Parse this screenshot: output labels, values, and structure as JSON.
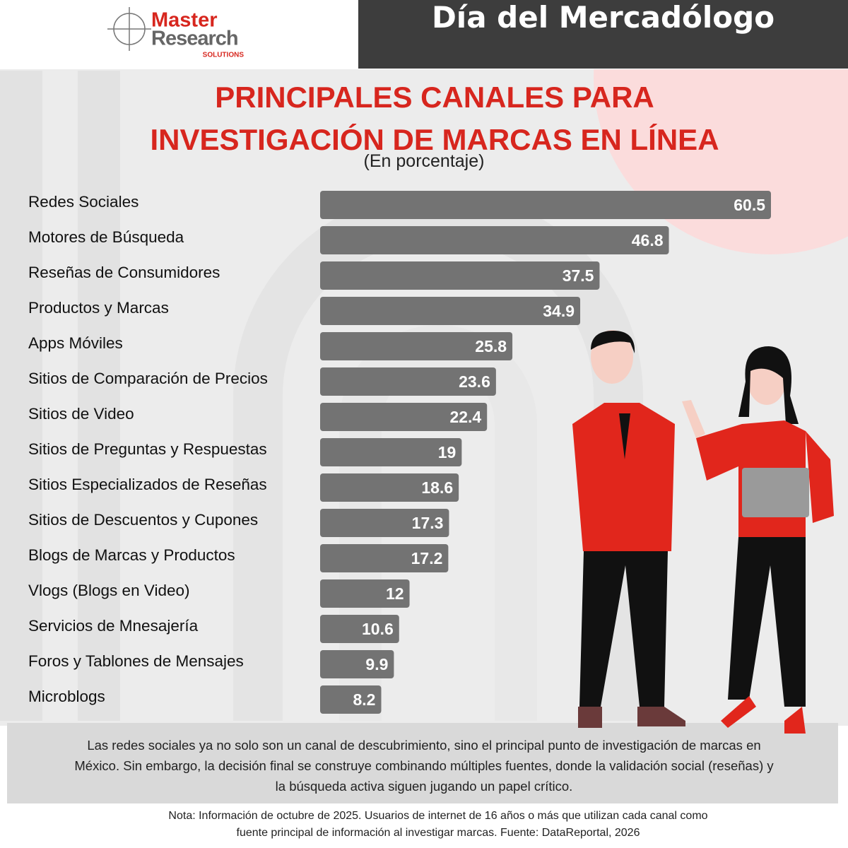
{
  "header": {
    "brand": "Master",
    "brand2": "Research",
    "brand3": "SOLUTIONS",
    "title": "Día del Mercadólogo"
  },
  "chart_data": {
    "type": "hbar",
    "title": "PRINCIPALES CANALES PARA INVESTIGACIÓN DE MARCAS EN LÍNEA",
    "subtitle": "(En porcentaje)",
    "categories": [
      "Redes Sociales",
      "Motores de Búsqueda",
      "Reseñas de Consumidores",
      "Productos y Marcas",
      "Apps Móviles",
      "Sitios de Comparación de Precios",
      "Sitios de Video",
      "Sitios de Preguntas y Respuestas",
      "Sitios Especializados de Reseñas",
      "Sitios de Descuentos y Cupones",
      "Blogs de Marcas y Productos",
      "Vlogs (Blogs en Video)",
      "Servicios de Mnesajería",
      "Foros y Tablones de Mensajes",
      "Microblogs"
    ],
    "values": [
      60.5,
      46.8,
      37.5,
      34.9,
      25.8,
      23.6,
      22.4,
      19,
      18.6,
      17.3,
      17.2,
      12,
      10.6,
      9.9,
      8.2
    ],
    "color": "#737373"
  },
  "summary": "Las redes sociales ya no solo son un canal de descubrimiento, sino el principal punto de investigación de marcas en México. Sin embargo, la decisión final se construye combinando múltiples fuentes, donde la validación social (reseñas) y la búsqueda activa siguen jugando un papel crítico.",
  "note": "Nota: Información de octubre de 2025. Usuarios de internet de 16 años o más que utilizan cada canal como fuente principal de información al investigar marcas. Fuente: DataReportal, 2026"
}
